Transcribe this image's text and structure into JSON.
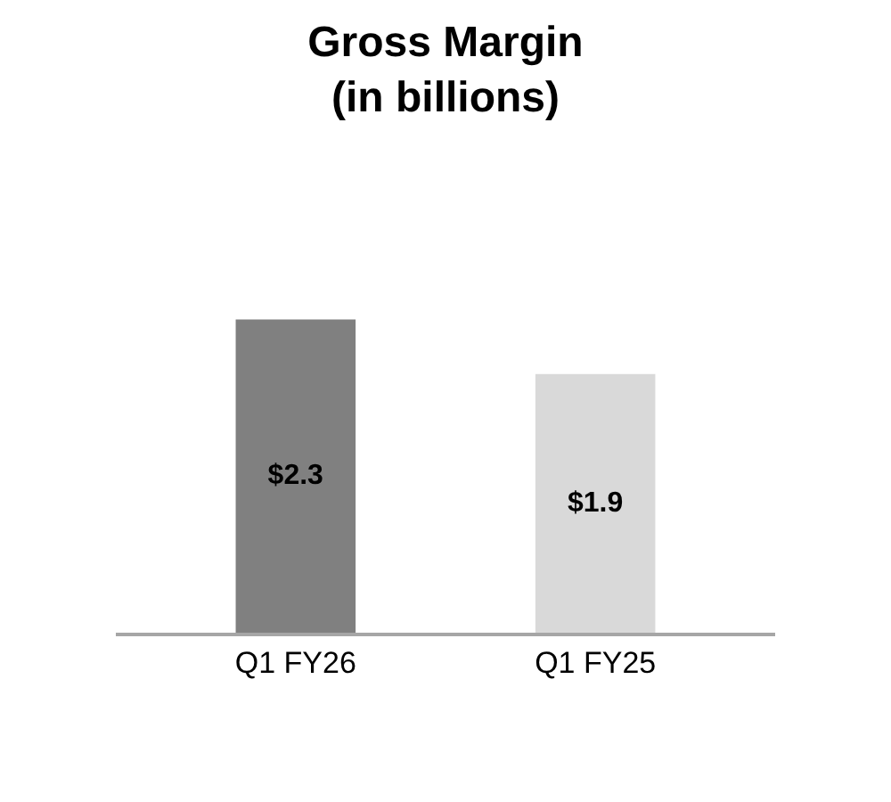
{
  "chart_data": {
    "type": "bar",
    "title": "Gross Margin\n(in billions)",
    "categories": [
      "Q1 FY26",
      "Q1 FY25"
    ],
    "values": [
      2.3,
      1.9
    ],
    "colors": [
      "#808080",
      "#d9d9d9"
    ],
    "value_labels": [
      "$2.3",
      "$1.9"
    ]
  }
}
